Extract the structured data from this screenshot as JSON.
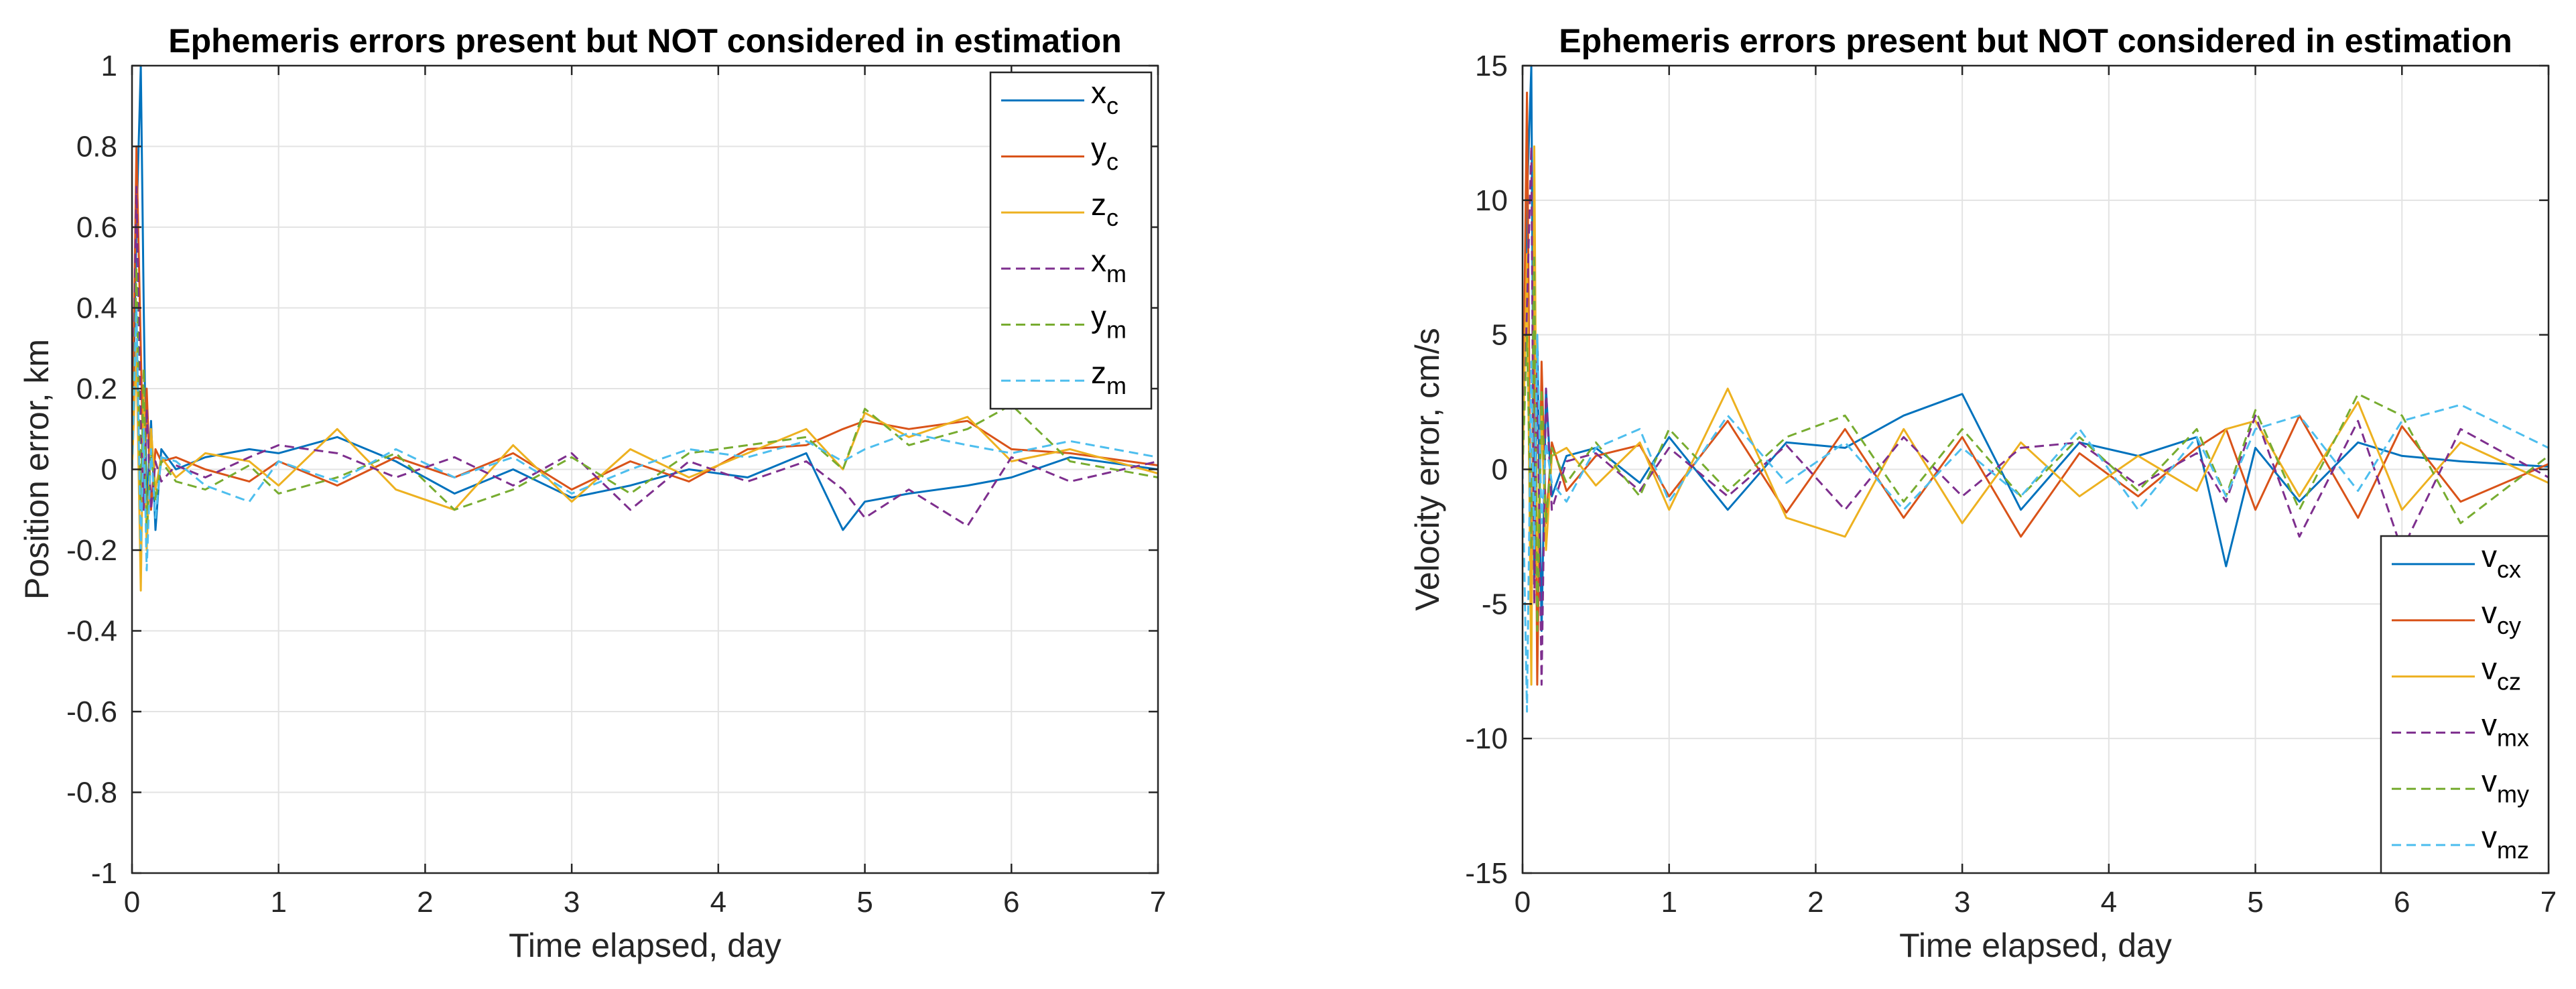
{
  "chart_data": [
    {
      "type": "line",
      "title": "Ephemeris errors present but NOT considered in estimation",
      "xlabel": "Time elapsed, day",
      "ylabel": "Position error, km",
      "xlim": [
        0,
        7
      ],
      "ylim": [
        -1,
        1
      ],
      "xticks": [
        0,
        1,
        2,
        3,
        4,
        5,
        6,
        7
      ],
      "xtick_labels": [
        "0",
        "1",
        "2",
        "3",
        "4",
        "5",
        "6",
        "7"
      ],
      "yticks": [
        -1,
        -0.8,
        -0.6,
        -0.4,
        -0.2,
        0,
        0.2,
        0.4,
        0.6,
        0.8,
        1
      ],
      "ytick_labels": [
        "-1",
        "-0.8",
        "-0.6",
        "-0.4",
        "-0.2",
        "0",
        "0.2",
        "0.4",
        "0.6",
        "0.8",
        "1"
      ],
      "grid": true,
      "legend_position": "top-right",
      "series": [
        {
          "name": "x",
          "sub": "c",
          "color": "#0072BD",
          "dash": false,
          "x": [
            0,
            0.03,
            0.06,
            0.08,
            0.1,
            0.13,
            0.16,
            0.2,
            0.3,
            0.5,
            0.8,
            1.0,
            1.4,
            1.8,
            2.2,
            2.6,
            3.0,
            3.4,
            3.8,
            4.2,
            4.6,
            4.85,
            5.0,
            5.3,
            5.7,
            6.0,
            6.4,
            7.0
          ],
          "y": [
            0,
            0.6,
            1.0,
            0.4,
            -0.1,
            0.12,
            -0.15,
            0.05,
            0.0,
            0.03,
            0.05,
            0.04,
            0.08,
            0.02,
            -0.06,
            0.0,
            -0.07,
            -0.04,
            0.0,
            -0.02,
            0.04,
            -0.15,
            -0.08,
            -0.06,
            -0.04,
            -0.02,
            0.03,
            0.0
          ]
        },
        {
          "name": "y",
          "sub": "c",
          "color": "#D95319",
          "dash": false,
          "x": [
            0,
            0.03,
            0.06,
            0.08,
            0.1,
            0.13,
            0.16,
            0.2,
            0.3,
            0.5,
            0.8,
            1.0,
            1.4,
            1.8,
            2.2,
            2.6,
            3.0,
            3.4,
            3.8,
            4.2,
            4.6,
            4.85,
            5.0,
            5.3,
            5.7,
            6.0,
            6.4,
            7.0
          ],
          "y": [
            0,
            0.8,
            0.3,
            -0.05,
            0.2,
            -0.1,
            0.05,
            0.02,
            0.03,
            0.0,
            -0.03,
            0.02,
            -0.04,
            0.03,
            -0.02,
            0.04,
            -0.05,
            0.02,
            -0.03,
            0.05,
            0.06,
            0.1,
            0.12,
            0.1,
            0.12,
            0.05,
            0.04,
            0.01
          ]
        },
        {
          "name": "z",
          "sub": "c",
          "color": "#EDB120",
          "dash": false,
          "x": [
            0,
            0.03,
            0.06,
            0.08,
            0.1,
            0.13,
            0.16,
            0.2,
            0.3,
            0.5,
            0.8,
            1.0,
            1.4,
            1.8,
            2.2,
            2.6,
            3.0,
            3.4,
            3.8,
            4.2,
            4.6,
            4.85,
            5.0,
            5.3,
            5.7,
            6.0,
            6.4,
            7.0
          ],
          "y": [
            0,
            0.3,
            -0.3,
            0.2,
            -0.2,
            0.1,
            -0.05,
            0.03,
            -0.02,
            0.04,
            0.02,
            -0.04,
            0.1,
            -0.05,
            -0.1,
            0.06,
            -0.08,
            0.05,
            -0.02,
            0.04,
            0.1,
            0.0,
            0.14,
            0.08,
            0.13,
            0.02,
            0.05,
            -0.01
          ]
        },
        {
          "name": "x",
          "sub": "m",
          "color": "#7E2F8E",
          "dash": true,
          "x": [
            0,
            0.03,
            0.06,
            0.08,
            0.1,
            0.13,
            0.16,
            0.2,
            0.3,
            0.5,
            0.8,
            1.0,
            1.4,
            1.8,
            2.2,
            2.6,
            3.0,
            3.4,
            3.8,
            4.2,
            4.6,
            4.85,
            5.0,
            5.3,
            5.7,
            6.0,
            6.4,
            7.0
          ],
          "y": [
            0,
            0.7,
            0.1,
            -0.1,
            0.15,
            -0.1,
            0.02,
            -0.03,
            0.01,
            -0.02,
            0.03,
            0.06,
            0.04,
            -0.02,
            0.03,
            -0.04,
            0.04,
            -0.1,
            0.02,
            -0.03,
            0.02,
            -0.05,
            -0.12,
            -0.05,
            -0.14,
            0.03,
            -0.03,
            0.02
          ]
        },
        {
          "name": "y",
          "sub": "m",
          "color": "#77AC30",
          "dash": true,
          "x": [
            0,
            0.03,
            0.06,
            0.08,
            0.1,
            0.13,
            0.16,
            0.2,
            0.3,
            0.5,
            0.8,
            1.0,
            1.4,
            1.8,
            2.2,
            2.6,
            3.0,
            3.4,
            3.8,
            4.2,
            4.6,
            4.85,
            5.0,
            5.3,
            5.7,
            6.0,
            6.4,
            7.0
          ],
          "y": [
            0,
            0.5,
            -0.1,
            0.25,
            -0.15,
            0.05,
            -0.08,
            0.02,
            -0.03,
            -0.05,
            0.01,
            -0.06,
            -0.02,
            0.04,
            -0.1,
            -0.05,
            0.03,
            -0.06,
            0.04,
            0.06,
            0.08,
            0.0,
            0.15,
            0.06,
            0.1,
            0.16,
            0.02,
            -0.02
          ]
        },
        {
          "name": "z",
          "sub": "m",
          "color": "#4DBEEE",
          "dash": true,
          "x": [
            0,
            0.03,
            0.06,
            0.08,
            0.1,
            0.13,
            0.16,
            0.2,
            0.3,
            0.5,
            0.8,
            1.0,
            1.4,
            1.8,
            2.2,
            2.6,
            3.0,
            3.4,
            3.8,
            4.2,
            4.6,
            4.85,
            5.0,
            5.3,
            5.7,
            6.0,
            6.4,
            7.0
          ],
          "y": [
            0,
            0.4,
            -0.2,
            0.1,
            -0.25,
            0.05,
            -0.12,
            0.03,
            0.02,
            -0.04,
            -0.08,
            0.02,
            -0.03,
            0.05,
            -0.02,
            0.03,
            -0.06,
            0.0,
            0.05,
            0.03,
            0.07,
            0.02,
            0.05,
            0.09,
            0.06,
            0.04,
            0.07,
            0.03
          ]
        }
      ]
    },
    {
      "type": "line",
      "title": "Ephemeris errors present but NOT considered in estimation",
      "xlabel": "Time elapsed, day",
      "ylabel": "Velocity error, cm/s",
      "xlim": [
        0,
        7
      ],
      "ylim": [
        -15,
        15
      ],
      "xticks": [
        0,
        1,
        2,
        3,
        4,
        5,
        6,
        7
      ],
      "xtick_labels": [
        "0",
        "1",
        "2",
        "3",
        "4",
        "5",
        "6",
        "7"
      ],
      "yticks": [
        -15,
        -10,
        -5,
        0,
        5,
        10,
        15
      ],
      "ytick_labels": [
        "-15",
        "-10",
        "-5",
        "0",
        "5",
        "10",
        "15"
      ],
      "grid": true,
      "legend_position": "bottom-right",
      "series": [
        {
          "name": "v",
          "sub": "cx",
          "color": "#0072BD",
          "dash": false,
          "x": [
            0,
            0.03,
            0.06,
            0.08,
            0.1,
            0.13,
            0.16,
            0.2,
            0.3,
            0.5,
            0.8,
            1.0,
            1.4,
            1.8,
            2.2,
            2.6,
            3.0,
            3.4,
            3.8,
            4.2,
            4.6,
            4.8,
            5.0,
            5.3,
            5.7,
            6.0,
            6.4,
            7.0
          ],
          "y": [
            0,
            10,
            15,
            -4,
            5,
            -6,
            3,
            -1,
            0.5,
            0.8,
            -0.5,
            1.2,
            -1.5,
            1.0,
            0.8,
            2.0,
            2.8,
            -1.5,
            1.0,
            0.5,
            1.2,
            -3.6,
            0.8,
            -1.2,
            1.0,
            0.5,
            0.3,
            0.1
          ]
        },
        {
          "name": "v",
          "sub": "cy",
          "color": "#D95319",
          "dash": false,
          "x": [
            0,
            0.03,
            0.06,
            0.08,
            0.1,
            0.13,
            0.16,
            0.2,
            0.3,
            0.5,
            0.8,
            1.0,
            1.4,
            1.8,
            2.2,
            2.6,
            3.0,
            3.4,
            3.8,
            4.2,
            4.6,
            4.8,
            5.0,
            5.3,
            5.7,
            6.0,
            6.4,
            7.0
          ],
          "y": [
            0,
            14,
            -6,
            8,
            -8,
            4,
            -2,
            1,
            -0.8,
            0.5,
            0.9,
            -1.0,
            1.8,
            -1.6,
            1.5,
            -1.8,
            1.2,
            -2.5,
            0.6,
            -1.0,
            0.8,
            1.5,
            -1.5,
            2.0,
            -1.8,
            1.6,
            -1.2,
            0.2
          ]
        },
        {
          "name": "v",
          "sub": "cz",
          "color": "#EDB120",
          "dash": false,
          "x": [
            0,
            0.03,
            0.06,
            0.08,
            0.1,
            0.13,
            0.16,
            0.2,
            0.3,
            0.5,
            0.8,
            1.0,
            1.4,
            1.8,
            2.2,
            2.6,
            3.0,
            3.4,
            3.8,
            4.2,
            4.6,
            4.8,
            5.0,
            5.3,
            5.7,
            6.0,
            6.4,
            7.0
          ],
          "y": [
            0,
            8,
            -8,
            12,
            -4,
            2,
            -3,
            0.5,
            0.8,
            -0.6,
            1.0,
            -1.5,
            3.0,
            -1.8,
            -2.5,
            1.5,
            -2.0,
            1.0,
            -1.0,
            0.5,
            -0.8,
            1.5,
            1.8,
            -1.0,
            2.5,
            -1.5,
            1.0,
            -0.5
          ]
        },
        {
          "name": "v",
          "sub": "mx",
          "color": "#7E2F8E",
          "dash": true,
          "x": [
            0,
            0.03,
            0.06,
            0.08,
            0.1,
            0.13,
            0.16,
            0.2,
            0.3,
            0.5,
            0.8,
            1.0,
            1.4,
            1.8,
            2.2,
            2.6,
            3.0,
            3.4,
            3.8,
            4.2,
            4.6,
            4.8,
            5.0,
            5.3,
            5.7,
            6.0,
            6.4,
            7.0
          ],
          "y": [
            0,
            6,
            12,
            -5,
            4,
            -8,
            3,
            -1.5,
            0.3,
            0.6,
            -0.8,
            0.8,
            -1.0,
            0.9,
            -1.5,
            1.2,
            -1.0,
            0.8,
            1.0,
            -0.6,
            0.6,
            -1.2,
            2.0,
            -2.5,
            1.8,
            -3.0,
            1.5,
            -0.3
          ]
        },
        {
          "name": "v",
          "sub": "my",
          "color": "#77AC30",
          "dash": true,
          "x": [
            0,
            0.03,
            0.06,
            0.08,
            0.1,
            0.13,
            0.16,
            0.2,
            0.3,
            0.5,
            0.8,
            1.0,
            1.4,
            1.8,
            2.2,
            2.6,
            3.0,
            3.4,
            3.8,
            4.2,
            4.6,
            4.8,
            5.0,
            5.3,
            5.7,
            6.0,
            6.4,
            7.0
          ],
          "y": [
            0,
            5,
            -3,
            8,
            -6,
            3,
            -2,
            0.8,
            -0.5,
            1.0,
            -1.0,
            1.5,
            -0.8,
            1.2,
            2.0,
            -1.2,
            1.5,
            -1.0,
            1.2,
            -0.8,
            1.5,
            -1.0,
            2.2,
            -1.5,
            2.8,
            2.0,
            -2.0,
            0.5
          ]
        },
        {
          "name": "v",
          "sub": "mz",
          "color": "#4DBEEE",
          "dash": true,
          "x": [
            0,
            0.03,
            0.06,
            0.08,
            0.1,
            0.13,
            0.16,
            0.2,
            0.3,
            0.5,
            0.8,
            1.0,
            1.4,
            1.8,
            2.2,
            2.6,
            3.0,
            3.4,
            3.8,
            4.2,
            4.6,
            4.8,
            5.0,
            5.3,
            5.7,
            6.0,
            6.4,
            7.0
          ],
          "y": [
            0,
            -9,
            4,
            -3,
            5,
            -2,
            1,
            -0.5,
            -1.2,
            0.8,
            1.5,
            -1.2,
            2.0,
            -0.5,
            1.0,
            -1.5,
            0.8,
            -1.0,
            1.5,
            -1.5,
            1.2,
            -1.0,
            1.5,
            2.0,
            -0.8,
            1.8,
            2.4,
            0.8
          ]
        }
      ]
    }
  ]
}
